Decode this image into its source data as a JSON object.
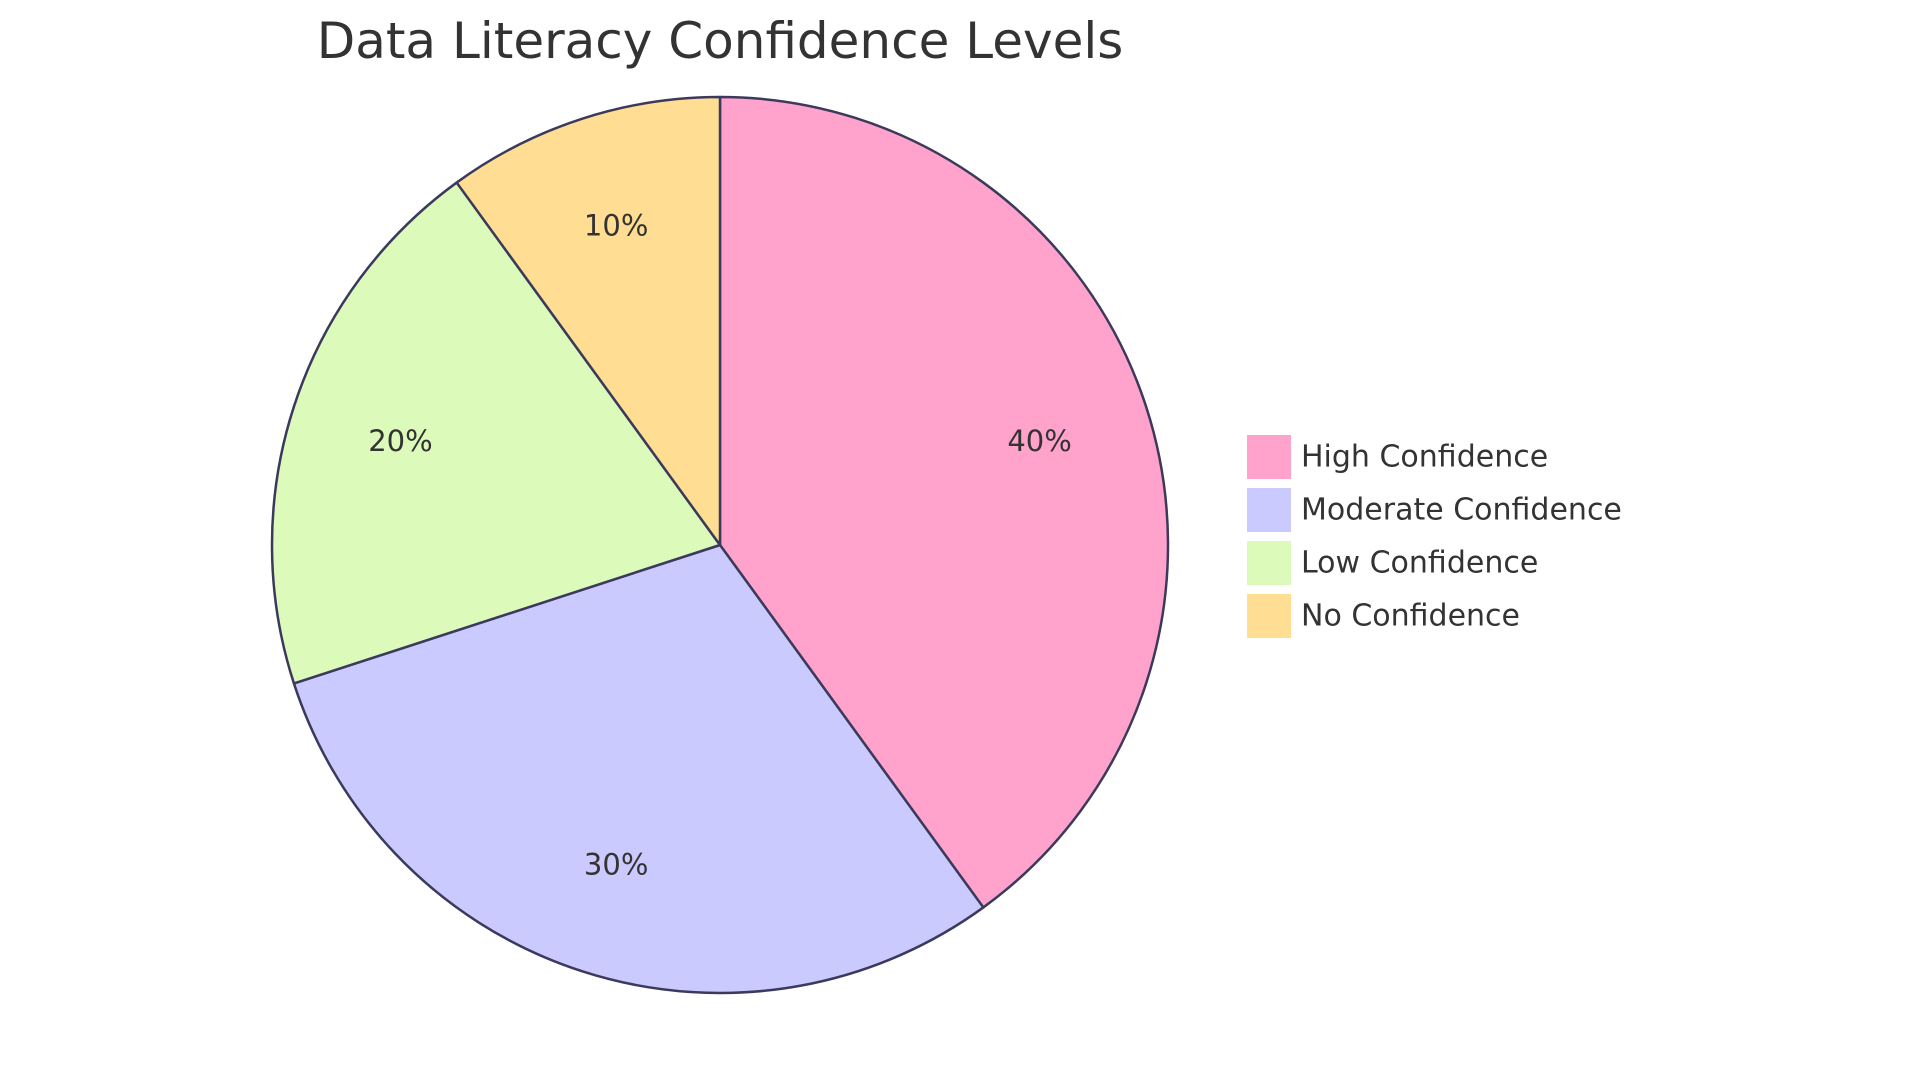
{
  "chart_data": {
    "type": "pie",
    "title": "Data Literacy Confidence Levels",
    "slices": [
      {
        "name": "High Confidence",
        "value": 40,
        "label": "40%",
        "color": "#ffa3cd"
      },
      {
        "name": "Moderate Confidence",
        "value": 30,
        "label": "30%",
        "color": "#cacaff"
      },
      {
        "name": "Low Confidence",
        "value": 20,
        "label": "20%",
        "color": "#dcfbba"
      },
      {
        "name": "No Confidence",
        "value": 10,
        "label": "10%",
        "color": "#ffdd93"
      }
    ],
    "legend_position": "right",
    "stroke_color": "#3b3a5c"
  }
}
